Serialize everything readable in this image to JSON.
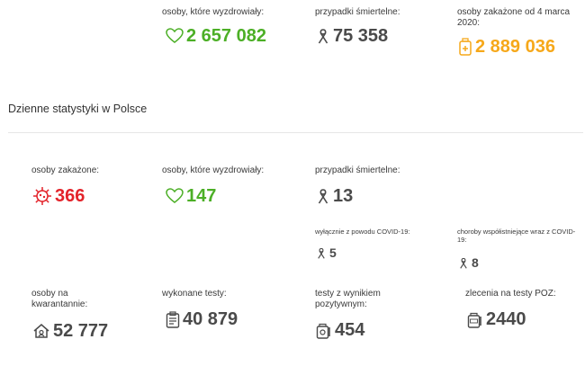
{
  "top": {
    "recovered": {
      "label": "osoby, które wyzdrowiały:",
      "value": "2 657 082"
    },
    "deaths": {
      "label": "przypadki śmiertelne:",
      "value": "75 358"
    },
    "infected_since": {
      "label": "osoby zakażone od 4 marca 2020:",
      "value": "2 889 036"
    }
  },
  "daily": {
    "title": "Dzienne statystyki w Polsce",
    "infected": {
      "label": "osoby zakażone:",
      "value": "366"
    },
    "recovered": {
      "label": "osoby, które wyzdrowiały:",
      "value": "147"
    },
    "deaths": {
      "label": "przypadki śmiertelne:",
      "value": "13"
    },
    "deaths_covid_only": {
      "label": "wyłącznie z powodu COVID-19:",
      "value": "5"
    },
    "deaths_comorbid": {
      "label": "choroby współistniejące wraz z COVID-19:",
      "value": "8"
    },
    "quarantine": {
      "label": "osoby na kwarantannie:",
      "value": "52 777"
    },
    "tests": {
      "label": "wykonane testy:",
      "value": "40 879"
    },
    "positive_tests": {
      "label": "testy z wynikiem pozytywnym:",
      "value": "454"
    },
    "poz_orders": {
      "label": "zlecenia na testy POZ:",
      "value": "2440"
    }
  },
  "colors": {
    "green": "#4caf26",
    "orange": "#f6a81a",
    "red": "#e3232a",
    "grey": "#4a4a4a"
  },
  "icons": [
    "heart-icon",
    "ribbon-icon",
    "test-tube-icon",
    "virus-icon",
    "house-icon",
    "clipboard-icon",
    "test-kit-icon",
    "poz-kit-icon"
  ]
}
